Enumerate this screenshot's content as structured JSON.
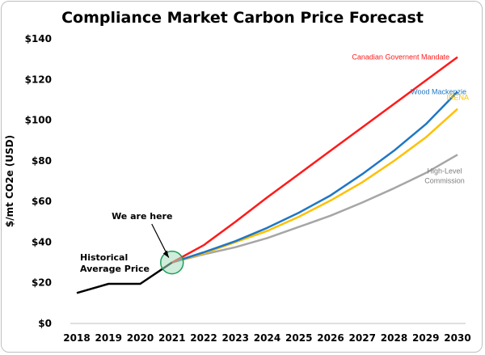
{
  "chart_data": {
    "type": "line",
    "title": "Compliance Market Carbon Price Forecast",
    "xlabel": "",
    "ylabel": "$/mt CO2e (USD)",
    "x": [
      "2018",
      "2019",
      "2020",
      "2021",
      "2022",
      "2023",
      "2024",
      "2025",
      "2026",
      "2027",
      "2028",
      "2029",
      "2030"
    ],
    "ylim": [
      0,
      140
    ],
    "yticks": [
      "$0",
      "$20",
      "$40",
      "$60",
      "$80",
      "$100",
      "$120",
      "$140"
    ],
    "grid": false,
    "series": [
      {
        "name": "Historical Average Price",
        "color": "#000000",
        "values": [
          15,
          19.5,
          19.5,
          30,
          null,
          null,
          null,
          null,
          null,
          null,
          null,
          null,
          null
        ]
      },
      {
        "name": "Canadian Governent Mandate",
        "color": "#ff1a1a",
        "values": [
          null,
          null,
          null,
          30,
          38.5,
          50,
          62,
          73.5,
          85,
          96.5,
          108,
          119.5,
          131
        ]
      },
      {
        "name": "Wood Mackenzie",
        "color": "#1f77c4",
        "values": [
          null,
          null,
          null,
          30,
          35,
          40.5,
          47,
          54.5,
          63,
          73.5,
          85,
          98,
          114
        ]
      },
      {
        "name": "IRENA",
        "color": "#ffc000",
        "values": [
          null,
          null,
          null,
          30,
          34.5,
          40,
          45.5,
          52.5,
          60.5,
          69.5,
          80,
          91.5,
          105.5
        ]
      },
      {
        "name": "High-Level Commission",
        "color": "#a6a6a6",
        "values": [
          null,
          null,
          null,
          30,
          34,
          37.5,
          42,
          47.5,
          53,
          59.5,
          66.5,
          74,
          83
        ]
      }
    ],
    "annotations": {
      "we_are_here": "We are here",
      "historical_line1": "Historical",
      "historical_line2": "Average Price",
      "hlc_line1": "High-Level",
      "hlc_line2": "Commission",
      "marker_year": "2021",
      "marker_value": 30
    }
  }
}
